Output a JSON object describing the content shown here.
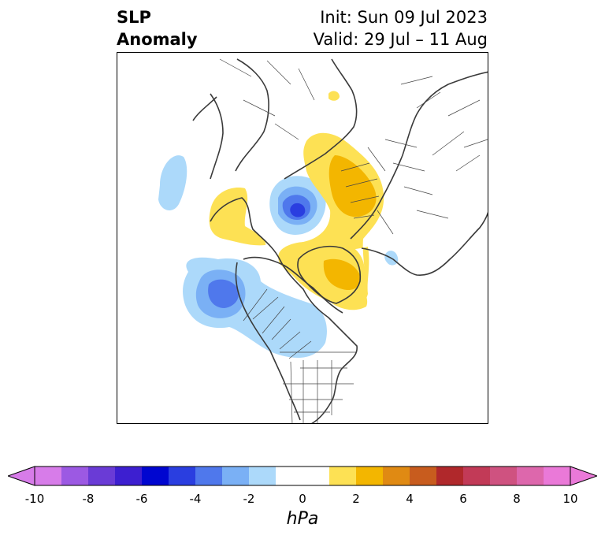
{
  "title": {
    "left_line1": "SLP",
    "left_line2": "Anomaly",
    "right_line1": "Init: Sun 09 Jul 2023",
    "right_line2": "Valid: 29 Jul – 11 Aug"
  },
  "colorbar": {
    "label": "hPa",
    "ticks": [
      "-10",
      "-8",
      "-6",
      "-4",
      "-2",
      "0",
      "2",
      "4",
      "6",
      "8",
      "10"
    ],
    "colors": [
      "#d77ce9",
      "#9c59e3",
      "#6a3bd6",
      "#3d1fd0",
      "#0006d0",
      "#2a3ee0",
      "#4f78ec",
      "#7ab0f5",
      "#acd9fa",
      "#ffffff",
      "#ffffff",
      "#fde154",
      "#f3b600",
      "#e08a13",
      "#c85c1e",
      "#b0282b",
      "#c23a57",
      "#cf5280",
      "#dd67ac",
      "#ea79d8"
    ],
    "extend": "both"
  },
  "map": {
    "projection": "north-polar-stereographic",
    "region": "Northern Hemisphere",
    "variable": "Sea level pressure anomaly"
  }
}
